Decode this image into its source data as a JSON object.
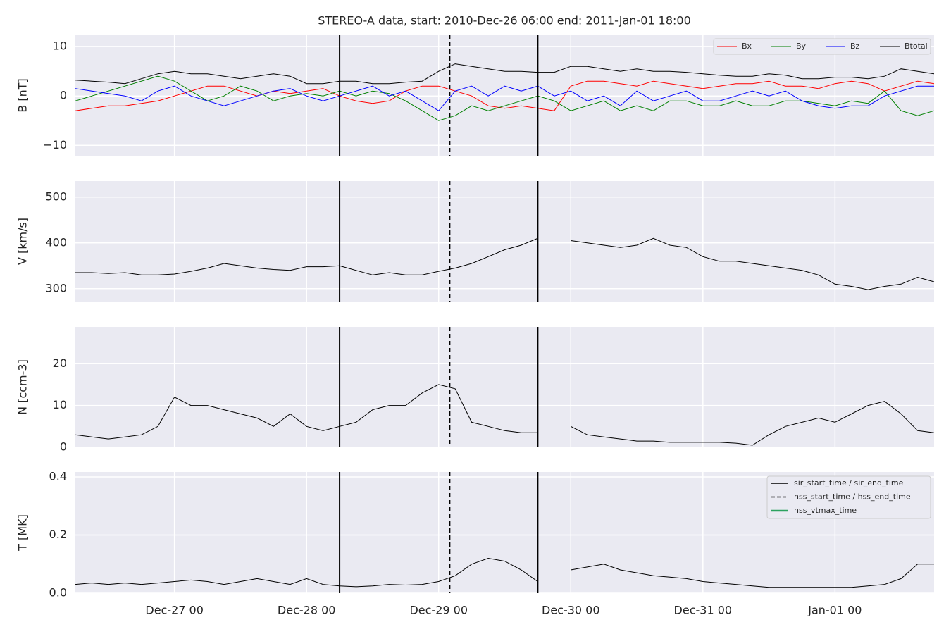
{
  "chart_data": [
    {
      "type": "line",
      "title": "STEREO-A data, start: 2010-Dec-26 06:00  end: 2011-Jan-01 18:00",
      "ylabel": "B [nT]",
      "x": [
        "Dec-26 06",
        "Dec-26 09",
        "Dec-26 12",
        "Dec-26 15",
        "Dec-26 18",
        "Dec-26 21",
        "Dec-27 00",
        "Dec-27 03",
        "Dec-27 06",
        "Dec-27 09",
        "Dec-27 12",
        "Dec-27 15",
        "Dec-27 18",
        "Dec-27 21",
        "Dec-28 00",
        "Dec-28 03",
        "Dec-28 06",
        "Dec-28 09",
        "Dec-28 12",
        "Dec-28 15",
        "Dec-28 18",
        "Dec-28 21",
        "Dec-29 00",
        "Dec-29 03",
        "Dec-29 06",
        "Dec-29 09",
        "Dec-29 12",
        "Dec-29 15",
        "Dec-29 18",
        "Dec-29 21",
        "Dec-30 00",
        "Dec-30 03",
        "Dec-30 06",
        "Dec-30 09",
        "Dec-30 12",
        "Dec-30 15",
        "Dec-30 18",
        "Dec-30 21",
        "Dec-31 00",
        "Dec-31 03",
        "Dec-31 06",
        "Dec-31 09",
        "Dec-31 12",
        "Dec-31 15",
        "Dec-31 18",
        "Dec-31 21",
        "Jan-01 00",
        "Jan-01 03",
        "Jan-01 06",
        "Jan-01 09",
        "Jan-01 12",
        "Jan-01 15",
        "Jan-01 18"
      ],
      "series": [
        {
          "name": "Bx",
          "color": "#ff0000",
          "values": [
            -3,
            -2.5,
            -2,
            -2,
            -1.5,
            -1,
            0,
            1,
            2,
            2,
            1,
            0,
            1,
            0.5,
            1,
            1.5,
            0,
            -1,
            -1.5,
            -1,
            1,
            2,
            2,
            1,
            0,
            -2,
            -2.5,
            -2,
            -2.5,
            -3,
            2,
            3,
            3,
            2.5,
            2,
            3,
            2.5,
            2,
            1.5,
            2,
            2.5,
            2.5,
            3,
            2,
            2,
            1.5,
            2.5,
            3,
            2.5,
            1,
            2,
            3,
            2.5
          ]
        },
        {
          "name": "By",
          "color": "#008000",
          "values": [
            -1,
            0,
            1,
            2,
            3,
            4,
            3,
            1,
            -1,
            0,
            2,
            1,
            -1,
            0,
            0.5,
            0,
            1,
            0,
            1,
            0.5,
            -1,
            -3,
            -5,
            -4,
            -2,
            -3,
            -2,
            -1,
            0,
            -1,
            -3,
            -2,
            -1,
            -3,
            -2,
            -3,
            -1,
            -1,
            -2,
            -2,
            -1,
            -2,
            -2,
            -1,
            -1,
            -1.5,
            -2,
            -1,
            -1.5,
            1,
            -3,
            -4,
            -3
          ]
        },
        {
          "name": "Bz",
          "color": "#0000ff",
          "values": [
            1.5,
            1,
            0.5,
            0,
            -1,
            1,
            2,
            0,
            -1,
            -2,
            -1,
            0,
            1,
            1.5,
            0,
            -1,
            0,
            1,
            2,
            0,
            1,
            -1,
            -3,
            1,
            2,
            0,
            2,
            1,
            2,
            0,
            1,
            -1,
            0,
            -2,
            1,
            -1,
            0,
            1,
            -1,
            -1,
            0,
            1,
            0,
            1,
            -1,
            -2,
            -2.5,
            -2,
            -2,
            0,
            1,
            2,
            2
          ]
        },
        {
          "name": "Btotal",
          "color": "#000000",
          "values": [
            3.2,
            3,
            2.8,
            2.5,
            3.5,
            4.5,
            5,
            4.5,
            4.5,
            4,
            3.5,
            4,
            4.5,
            4,
            2.5,
            2.5,
            3,
            3,
            2.5,
            2.5,
            2.8,
            3,
            5,
            6.5,
            6,
            5.5,
            5,
            5,
            4.8,
            4.8,
            6,
            6,
            5.5,
            5,
            5.5,
            5,
            5,
            4.8,
            4.5,
            4.2,
            4,
            4,
            4.5,
            4.2,
            3.5,
            3.5,
            3.8,
            3.8,
            3.5,
            4,
            5.5,
            5,
            4.5
          ]
        }
      ],
      "legend": "upper right",
      "grid": true,
      "xlim": [
        "Dec-26 06",
        "Jan-01 18"
      ],
      "xticks": [
        "Dec-27 00",
        "Dec-28 00",
        "Dec-29 00",
        "Dec-30 00",
        "Dec-31 00",
        "Jan-01 00"
      ],
      "ylim": [
        -12.1,
        12.3
      ],
      "yticks": [
        {
          "value": -10,
          "label": "−10"
        },
        0,
        10
      ]
    },
    {
      "type": "line",
      "ylabel": "V [km/s]",
      "color": "#000000",
      "x": [
        "Dec-26 06",
        "Dec-26 09",
        "Dec-26 12",
        "Dec-26 15",
        "Dec-26 18",
        "Dec-26 21",
        "Dec-27 00",
        "Dec-27 03",
        "Dec-27 06",
        "Dec-27 09",
        "Dec-27 12",
        "Dec-27 15",
        "Dec-27 18",
        "Dec-27 21",
        "Dec-28 00",
        "Dec-28 03",
        "Dec-28 06",
        "Dec-28 09",
        "Dec-28 12",
        "Dec-28 15",
        "Dec-28 18",
        "Dec-28 21",
        "Dec-29 00",
        "Dec-29 03",
        "Dec-29 06",
        "Dec-29 09",
        "Dec-29 12",
        "Dec-29 15",
        "Dec-29 18",
        "Dec-29 21",
        "Dec-30 00",
        "Dec-30 03",
        "Dec-30 06",
        "Dec-30 09",
        "Dec-30 12",
        "Dec-30 15",
        "Dec-30 18",
        "Dec-30 21",
        "Dec-31 00",
        "Dec-31 03",
        "Dec-31 06",
        "Dec-31 09",
        "Dec-31 12",
        "Dec-31 15",
        "Dec-31 18",
        "Dec-31 21",
        "Jan-01 00",
        "Jan-01 03",
        "Jan-01 06",
        "Jan-01 09",
        "Jan-01 12",
        "Jan-01 15",
        "Jan-01 18"
      ],
      "values": [
        335,
        335,
        333,
        335,
        330,
        330,
        332,
        338,
        345,
        355,
        350,
        345,
        342,
        340,
        348,
        348,
        350,
        340,
        330,
        335,
        330,
        330,
        338,
        345,
        355,
        370,
        385,
        395,
        410,
        null,
        405,
        400,
        395,
        390,
        395,
        410,
        395,
        390,
        370,
        360,
        360,
        355,
        350,
        345,
        340,
        330,
        310,
        305,
        298,
        305,
        310,
        325,
        315
      ],
      "grid": true,
      "xlim": [
        "Dec-26 06",
        "Jan-01 18"
      ],
      "xticks": [
        "Dec-27 00",
        "Dec-28 00",
        "Dec-29 00",
        "Dec-30 00",
        "Dec-31 00",
        "Jan-01 00"
      ],
      "ylim": [
        272,
        535
      ],
      "yticks": [
        300,
        400,
        500
      ]
    },
    {
      "type": "line",
      "ylabel": "N [ccm-3]",
      "color": "#000000",
      "x": [
        "Dec-26 06",
        "Dec-26 09",
        "Dec-26 12",
        "Dec-26 15",
        "Dec-26 18",
        "Dec-26 21",
        "Dec-27 00",
        "Dec-27 03",
        "Dec-27 06",
        "Dec-27 09",
        "Dec-27 12",
        "Dec-27 15",
        "Dec-27 18",
        "Dec-27 21",
        "Dec-28 00",
        "Dec-28 03",
        "Dec-28 06",
        "Dec-28 09",
        "Dec-28 12",
        "Dec-28 15",
        "Dec-28 18",
        "Dec-28 21",
        "Dec-29 00",
        "Dec-29 03",
        "Dec-29 06",
        "Dec-29 09",
        "Dec-29 12",
        "Dec-29 15",
        "Dec-29 18",
        "Dec-29 21",
        "Dec-30 00",
        "Dec-30 03",
        "Dec-30 06",
        "Dec-30 09",
        "Dec-30 12",
        "Dec-30 15",
        "Dec-30 18",
        "Dec-30 21",
        "Dec-31 00",
        "Dec-31 03",
        "Dec-31 06",
        "Dec-31 09",
        "Dec-31 12",
        "Dec-31 15",
        "Dec-31 18",
        "Dec-31 21",
        "Jan-01 00",
        "Jan-01 03",
        "Jan-01 06",
        "Jan-01 09",
        "Jan-01 12",
        "Jan-01 15",
        "Jan-01 18"
      ],
      "values": [
        3,
        2.5,
        2,
        2.5,
        3,
        5,
        12,
        10,
        10,
        9,
        8,
        7,
        5,
        8,
        5,
        4,
        5,
        6,
        9,
        10,
        10,
        13,
        15,
        14,
        6,
        5,
        4,
        3.5,
        3.5,
        null,
        5,
        3,
        2.5,
        2,
        1.5,
        1.5,
        1.2,
        1.2,
        1.2,
        1.2,
        1,
        0.5,
        3,
        5,
        6,
        7,
        6,
        8,
        10,
        11,
        8,
        4,
        3.5
      ],
      "grid": true,
      "xlim": [
        "Dec-26 06",
        "Jan-01 18"
      ],
      "xticks": [
        "Dec-27 00",
        "Dec-28 00",
        "Dec-29 00",
        "Dec-30 00",
        "Dec-31 00",
        "Jan-01 00"
      ],
      "ylim": [
        0,
        28.8
      ],
      "yticks": [
        0,
        10,
        20
      ]
    },
    {
      "type": "line",
      "ylabel": "T [MK]",
      "color": "#000000",
      "x": [
        "Dec-26 06",
        "Dec-26 09",
        "Dec-26 12",
        "Dec-26 15",
        "Dec-26 18",
        "Dec-26 21",
        "Dec-27 00",
        "Dec-27 03",
        "Dec-27 06",
        "Dec-27 09",
        "Dec-27 12",
        "Dec-27 15",
        "Dec-27 18",
        "Dec-27 21",
        "Dec-28 00",
        "Dec-28 03",
        "Dec-28 06",
        "Dec-28 09",
        "Dec-28 12",
        "Dec-28 15",
        "Dec-28 18",
        "Dec-28 21",
        "Dec-29 00",
        "Dec-29 03",
        "Dec-29 06",
        "Dec-29 09",
        "Dec-29 12",
        "Dec-29 15",
        "Dec-29 18",
        "Dec-29 21",
        "Dec-30 00",
        "Dec-30 03",
        "Dec-30 06",
        "Dec-30 09",
        "Dec-30 12",
        "Dec-30 15",
        "Dec-30 18",
        "Dec-30 21",
        "Dec-31 00",
        "Dec-31 03",
        "Dec-31 06",
        "Dec-31 09",
        "Dec-31 12",
        "Dec-31 15",
        "Dec-31 18",
        "Dec-31 21",
        "Jan-01 00",
        "Jan-01 03",
        "Jan-01 06",
        "Jan-01 09",
        "Jan-01 12",
        "Jan-01 15",
        "Jan-01 18"
      ],
      "values": [
        0.03,
        0.035,
        0.03,
        0.035,
        0.03,
        0.035,
        0.04,
        0.045,
        0.04,
        0.03,
        0.04,
        0.05,
        0.04,
        0.03,
        0.05,
        0.03,
        0.025,
        0.022,
        0.025,
        0.03,
        0.028,
        0.03,
        0.04,
        0.06,
        0.1,
        0.12,
        0.11,
        0.08,
        0.04,
        null,
        0.08,
        0.09,
        0.1,
        0.08,
        0.07,
        0.06,
        0.055,
        0.05,
        0.04,
        0.035,
        0.03,
        0.025,
        0.02,
        0.02,
        0.02,
        0.02,
        0.02,
        0.02,
        0.025,
        0.03,
        0.05,
        0.1,
        0.1
      ],
      "grid": true,
      "xlim": [
        "Dec-26 06",
        "Jan-01 18"
      ],
      "xticks": [
        "Dec-27 00",
        "Dec-28 00",
        "Dec-29 00",
        "Dec-30 00",
        "Dec-31 00",
        "Jan-01 00"
      ],
      "ylim": [
        0,
        0.417
      ],
      "yticks": [
        {
          "value": 0,
          "label": "0.0"
        },
        {
          "value": 0.2,
          "label": "0.2"
        },
        {
          "value": 0.4,
          "label": "0.4"
        }
      ],
      "legend": "upper right",
      "events": [
        {
          "name": "sir_start_time / sir_end_time",
          "style": "solid",
          "color": "#000000",
          "times": [
            "Dec-28 06",
            "Dec-29 18"
          ]
        },
        {
          "name": "hss_start_time / hss_end_time",
          "style": "dashed",
          "color": "#000000",
          "times": [
            "Dec-29 02"
          ]
        },
        {
          "name": "hss_vtmax_time",
          "style": "solid",
          "color": "#2ca25f",
          "times": []
        }
      ]
    }
  ]
}
